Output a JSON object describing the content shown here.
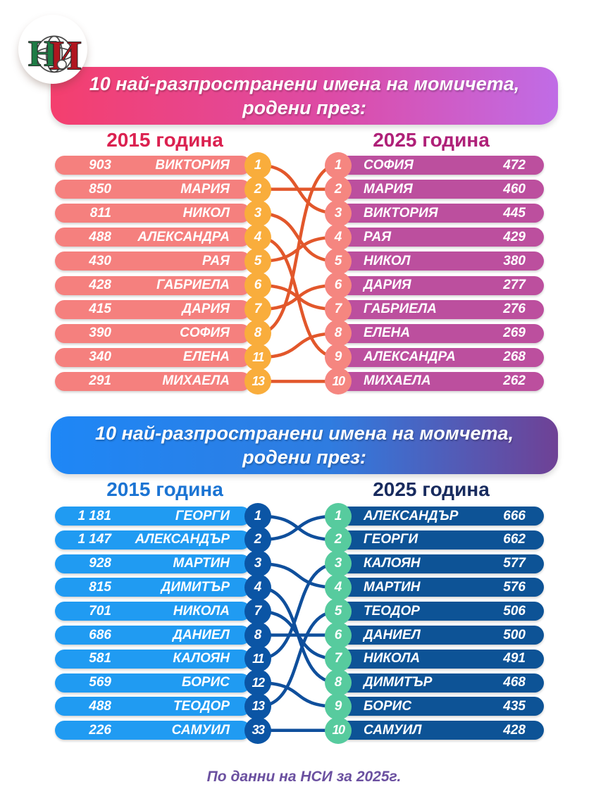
{
  "logo": {
    "org": "НСИ",
    "letter_n": "Н",
    "letter_i": "И"
  },
  "footer": {
    "text": "По данни на НСИ за 2025г.",
    "color": "#6B50A0"
  },
  "chart_data": [
    {
      "type": "slopegraph-ranking",
      "title_line1": "10 най-разпространени имена на момичета,",
      "title_line2": "родени през:",
      "left_year_label": "2015 година",
      "right_year_label": "2025 година",
      "left": [
        {
          "count": "903",
          "name": "ВИКТОРИЯ",
          "rank": "1"
        },
        {
          "count": "850",
          "name": "МАРИЯ",
          "rank": "2"
        },
        {
          "count": "811",
          "name": "НИКОЛ",
          "rank": "3"
        },
        {
          "count": "488",
          "name": "АЛЕКСАНДРА",
          "rank": "4"
        },
        {
          "count": "430",
          "name": "РАЯ",
          "rank": "5"
        },
        {
          "count": "428",
          "name": "ГАБРИЕЛА",
          "rank": "6"
        },
        {
          "count": "415",
          "name": "ДАРИЯ",
          "rank": "7"
        },
        {
          "count": "390",
          "name": "СОФИЯ",
          "rank": "8"
        },
        {
          "count": "340",
          "name": "ЕЛЕНА",
          "rank": "11"
        },
        {
          "count": "291",
          "name": "МИХАЕЛА",
          "rank": "13"
        }
      ],
      "right": [
        {
          "rank": "1",
          "name": "СОФИЯ",
          "count": "472"
        },
        {
          "rank": "2",
          "name": "МАРИЯ",
          "count": "460"
        },
        {
          "rank": "3",
          "name": "ВИКТОРИЯ",
          "count": "445"
        },
        {
          "rank": "4",
          "name": "РАЯ",
          "count": "429"
        },
        {
          "rank": "5",
          "name": "НИКОЛ",
          "count": "380"
        },
        {
          "rank": "6",
          "name": "ДАРИЯ",
          "count": "277"
        },
        {
          "rank": "7",
          "name": "ГАБРИЕЛА",
          "count": "276"
        },
        {
          "rank": "8",
          "name": "ЕЛЕНА",
          "count": "269"
        },
        {
          "rank": "9",
          "name": "АЛЕКСАНДРА",
          "count": "268"
        },
        {
          "rank": "10",
          "name": "МИХАЕЛА",
          "count": "262"
        }
      ],
      "links": [
        [
          0,
          2
        ],
        [
          1,
          1
        ],
        [
          2,
          4
        ],
        [
          3,
          8
        ],
        [
          4,
          3
        ],
        [
          5,
          6
        ],
        [
          6,
          5
        ],
        [
          7,
          0
        ],
        [
          8,
          7
        ],
        [
          9,
          9
        ]
      ],
      "colors": {
        "banner_gradient": [
          "#F43F6E",
          "#DD4BA6",
          "#C06CE6"
        ],
        "left_header": "#DB2150",
        "right_header": "#AF2078",
        "left_pill": "#F5807E",
        "left_badge": "#F9AD3C",
        "right_pill": "#BC4F9E",
        "right_badge": "#F58680",
        "line": "#E2572B"
      }
    },
    {
      "type": "slopegraph-ranking",
      "title_line1": "10 най-разпространени имена на момчета,",
      "title_line2": "родени през:",
      "left_year_label": "2015 година",
      "right_year_label": "2025 година",
      "left": [
        {
          "count": "1 181",
          "name": "ГЕОРГИ",
          "rank": "1"
        },
        {
          "count": "1 147",
          "name": "АЛЕКСАНДЪР",
          "rank": "2"
        },
        {
          "count": "928",
          "name": "МАРТИН",
          "rank": "3"
        },
        {
          "count": "815",
          "name": "ДИМИТЪР",
          "rank": "4"
        },
        {
          "count": "701",
          "name": "НИКОЛА",
          "rank": "7"
        },
        {
          "count": "686",
          "name": "ДАНИЕЛ",
          "rank": "8"
        },
        {
          "count": "581",
          "name": "КАЛОЯН",
          "rank": "11"
        },
        {
          "count": "569",
          "name": "БОРИС",
          "rank": "12"
        },
        {
          "count": "488",
          "name": "ТЕОДОР",
          "rank": "13"
        },
        {
          "count": "226",
          "name": "САМУИЛ",
          "rank": "33"
        }
      ],
      "right": [
        {
          "rank": "1",
          "name": "АЛЕКСАНДЪР",
          "count": "666"
        },
        {
          "rank": "2",
          "name": "ГЕОРГИ",
          "count": "662"
        },
        {
          "rank": "3",
          "name": "КАЛОЯН",
          "count": "577"
        },
        {
          "rank": "4",
          "name": "МАРТИН",
          "count": "576"
        },
        {
          "rank": "5",
          "name": "ТЕОДОР",
          "count": "506"
        },
        {
          "rank": "6",
          "name": "ДАНИЕЛ",
          "count": "500"
        },
        {
          "rank": "7",
          "name": "НИКОЛА",
          "count": "491"
        },
        {
          "rank": "8",
          "name": "ДИМИТЪР",
          "count": "468"
        },
        {
          "rank": "9",
          "name": "БОРИС",
          "count": "435"
        },
        {
          "rank": "10",
          "name": "САМУИЛ",
          "count": "428"
        }
      ],
      "links": [
        [
          0,
          1
        ],
        [
          1,
          0
        ],
        [
          2,
          3
        ],
        [
          3,
          7
        ],
        [
          4,
          6
        ],
        [
          5,
          5
        ],
        [
          6,
          2
        ],
        [
          7,
          8
        ],
        [
          8,
          4
        ],
        [
          9,
          9
        ]
      ],
      "colors": {
        "banner_gradient": [
          "#1E87F6",
          "#2F7CE0",
          "#6F4195"
        ],
        "left_header": "#1B74D3",
        "right_header": "#182B5E",
        "left_pill": "#209BF2",
        "left_badge": "#0B55A5",
        "right_pill": "#0D5396",
        "right_badge": "#57CB9E",
        "line": "#0F4F9C"
      }
    }
  ]
}
